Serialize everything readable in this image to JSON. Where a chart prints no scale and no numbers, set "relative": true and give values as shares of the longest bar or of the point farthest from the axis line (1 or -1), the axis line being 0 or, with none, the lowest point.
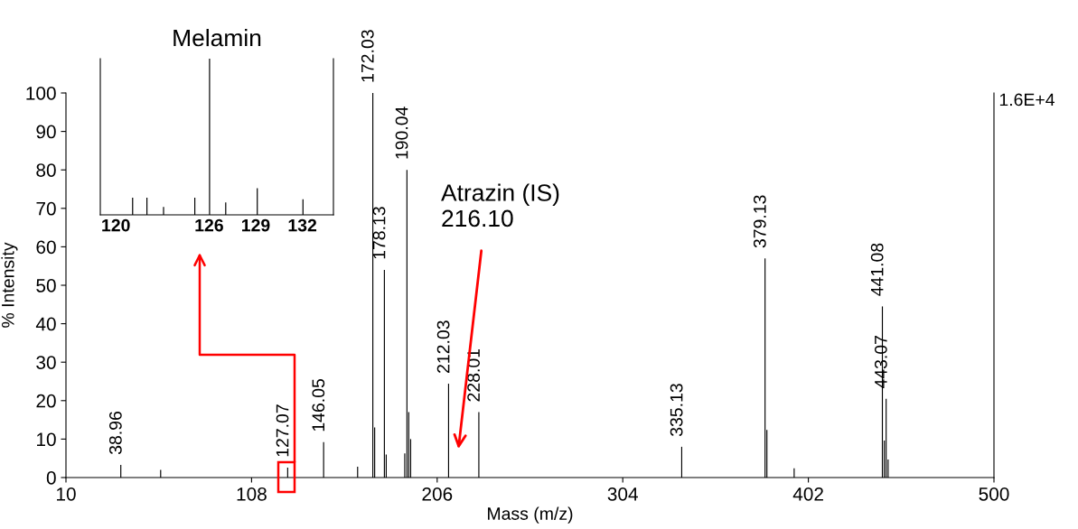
{
  "chart_data": [
    {
      "type": "bar",
      "xlabel": "Mass (m/z)",
      "ylabel": "% Intensity",
      "color": "#000000",
      "x": [
        38.96,
        60,
        127.07,
        146.05,
        164,
        172.03,
        173.0,
        178.13,
        179.1,
        188.9,
        190.04,
        191.0,
        192.0,
        212.03,
        228.01,
        335.13,
        379.13,
        380.1,
        394.5,
        441.08,
        442.1,
        443.07,
        444.1
      ],
      "values": [
        3.3,
        2,
        2.6,
        9.2,
        2.8,
        100,
        13,
        54,
        6,
        6.3,
        80,
        17,
        10,
        24.4,
        17,
        8,
        57,
        12.4,
        2.4,
        44.5,
        9.6,
        20.5,
        4.7
      ],
      "xlim": [
        10,
        500
      ],
      "xticks": [
        10,
        108,
        206,
        304,
        402,
        500
      ],
      "ylim": [
        0,
        100
      ],
      "yticks": [
        0,
        10,
        20,
        30,
        40,
        50,
        60,
        70,
        80,
        90,
        100
      ],
      "grid": false,
      "legend": false,
      "annotations": [
        {
          "text": "38.96",
          "x": 38.96,
          "y": 3.3
        },
        {
          "text": "127.07",
          "x": 127.07,
          "y": 2.6
        },
        {
          "text": "146.05",
          "x": 146.05,
          "y": 9.2
        },
        {
          "text": "172.03",
          "x": 172.03,
          "y": 100
        },
        {
          "text": "178.13",
          "x": 178.13,
          "y": 54
        },
        {
          "text": "190.04",
          "x": 190.04,
          "y": 80
        },
        {
          "text": "212.03",
          "x": 212.03,
          "y": 24.4
        },
        {
          "text": "228.01",
          "x": 228.01,
          "y": 17
        },
        {
          "text": "335.13",
          "x": 335.13,
          "y": 8
        },
        {
          "text": "379.13",
          "x": 379.13,
          "y": 57
        },
        {
          "text": "441.08",
          "x": 441.08,
          "y": 44.5
        },
        {
          "text": "443.07",
          "x": 443.07,
          "y": 20.5
        },
        "Atrazin (IS)\n216.10",
        "1.6E+4"
      ]
    },
    {
      "type": "bar",
      "title": "Melamin",
      "relative": true,
      "color": "#000000",
      "x": [
        121.08,
        122.0,
        123.07,
        125.08,
        126.03,
        127.07,
        129.1,
        132.04
      ],
      "values": [
        0.11,
        0.11,
        0.05,
        0.11,
        1,
        0.08,
        0.17,
        0.1
      ],
      "xlim": [
        119.0,
        134.0
      ],
      "xticks": [
        120,
        126,
        129,
        132
      ],
      "grid": false,
      "legend": false
    }
  ]
}
